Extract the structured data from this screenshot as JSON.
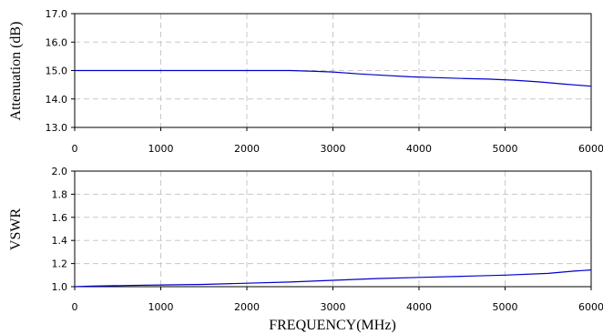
{
  "xlabel": "FREQUENCY(MHz)",
  "series_color": "#0000cc",
  "grid_color": "#c8c8c8",
  "chart_data": [
    {
      "type": "line",
      "ylabel": "Attenuation (dB)",
      "xlim": [
        0,
        6000
      ],
      "ylim": [
        13.0,
        17.0
      ],
      "x_ticks": [
        "0",
        "1000",
        "2000",
        "3000",
        "4000",
        "5000",
        "6000"
      ],
      "y_ticks": [
        "13.0",
        "14.0",
        "15.0",
        "16.0",
        "17.0"
      ],
      "grid": true,
      "x": [
        0,
        500,
        1000,
        1500,
        2000,
        2500,
        2800,
        3000,
        3300,
        3600,
        3900,
        4200,
        4500,
        4800,
        5100,
        5400,
        5700,
        6000
      ],
      "y": [
        15.0,
        15.0,
        15.0,
        15.0,
        15.0,
        15.0,
        14.97,
        14.95,
        14.88,
        14.83,
        14.78,
        14.75,
        14.72,
        14.7,
        14.66,
        14.6,
        14.52,
        14.45
      ]
    },
    {
      "type": "line",
      "ylabel": "VSWR",
      "xlim": [
        0,
        6000
      ],
      "ylim": [
        1.0,
        2.0
      ],
      "x_ticks": [
        "0",
        "1000",
        "2000",
        "3000",
        "4000",
        "5000",
        "6000"
      ],
      "y_ticks": [
        "1.0",
        "1.2",
        "1.4",
        "1.6",
        "1.8",
        "2.0"
      ],
      "grid": true,
      "x": [
        0,
        200,
        600,
        1000,
        1500,
        2000,
        2500,
        3000,
        3500,
        4000,
        4500,
        5000,
        5500,
        5800,
        6000
      ],
      "y": [
        1.0,
        1.005,
        1.01,
        1.015,
        1.02,
        1.03,
        1.04,
        1.055,
        1.07,
        1.08,
        1.09,
        1.1,
        1.115,
        1.135,
        1.145
      ]
    }
  ]
}
